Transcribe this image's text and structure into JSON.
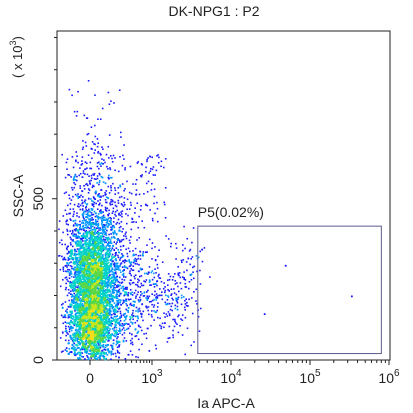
{
  "chart_data": {
    "type": "scatter",
    "title": "DK-NPG1 : P2",
    "xlabel": "Ia APC-A",
    "ylabel": "SSC-A",
    "y_multiplier_label": "( x 10",
    "y_multiplier_exp": "3",
    "x_scale": "biexponential",
    "xlim": [
      -500,
      1000000
    ],
    "ylim": [
      0,
      1020
    ],
    "x_ticks": [
      {
        "value": 0,
        "base": "0",
        "exp": ""
      },
      {
        "value": 1000,
        "base": "10",
        "exp": "3"
      },
      {
        "value": 10000,
        "base": "10",
        "exp": "4"
      },
      {
        "value": 100000,
        "base": "10",
        "exp": "5"
      },
      {
        "value": 1000000,
        "base": "10",
        "exp": "6"
      }
    ],
    "y_ticks": [
      {
        "value": 0,
        "label": "0"
      },
      {
        "value": 500,
        "label": "500"
      }
    ],
    "density_colormap": [
      "#1a1aff",
      "#0096ff",
      "#00d2c8",
      "#5ad746",
      "#c8e61e",
      "#ffdc14"
    ],
    "populations": [
      {
        "center_x": 0,
        "center_y": 275,
        "count": 2600,
        "peak": "green-yellow"
      },
      {
        "center_x": 0,
        "center_y": 105,
        "count": 2600,
        "peak": "yellow"
      }
    ],
    "gate": {
      "name": "P5(0.02%)",
      "x_range": [
        3800,
        800000
      ],
      "y_range": [
        20,
        415
      ],
      "color": "#5a5a8c",
      "events_inside": [
        {
          "x": 4200,
          "y": 345
        },
        {
          "x": 48000,
          "y": 295
        },
        {
          "x": 330000,
          "y": 200
        },
        {
          "x": 26000,
          "y": 145
        }
      ]
    }
  }
}
